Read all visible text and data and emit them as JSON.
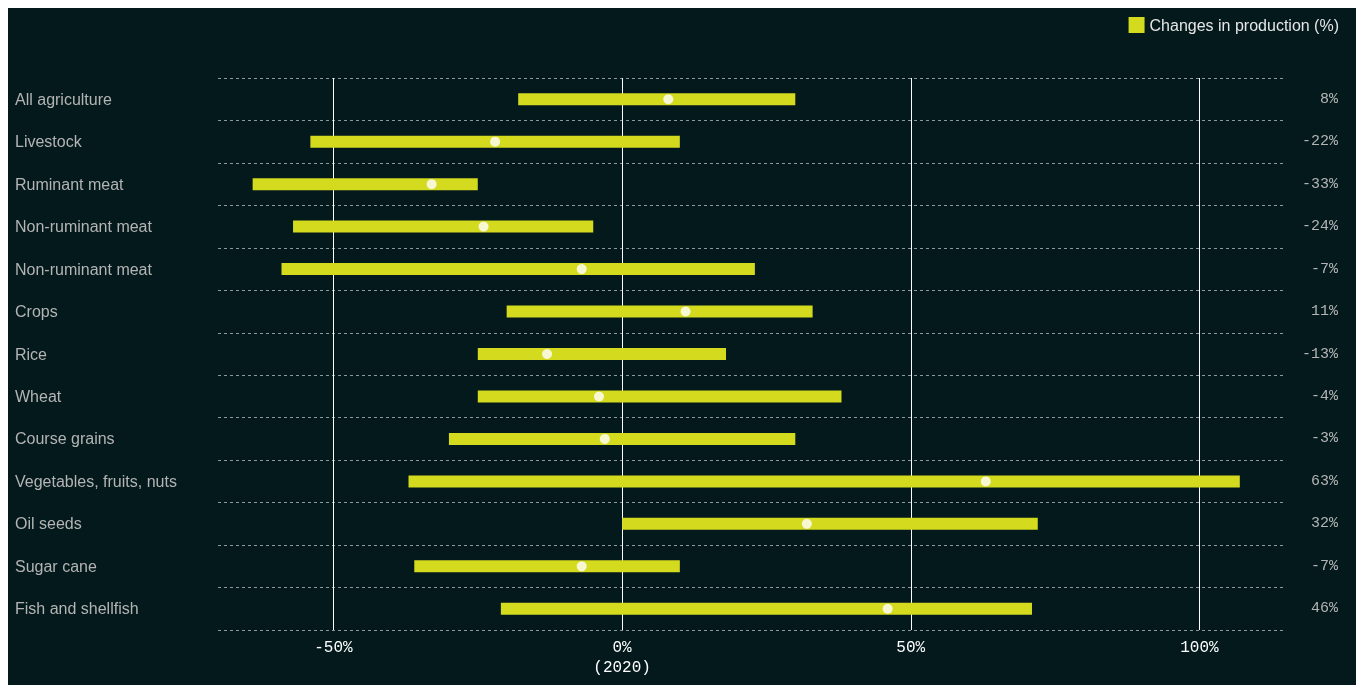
{
  "chart_data": {
    "type": "bar",
    "orientation": "horizontal",
    "categories": [
      "All agriculture",
      "Livestock",
      "Ruminant meat",
      "Non-ruminant meat",
      "Non-ruminant meat",
      "Crops",
      "Rice",
      "Wheat",
      "Course grains",
      "Vegetables, fruits, nuts",
      "Oil seeds",
      "Sugar cane",
      "Fish and shellfish"
    ],
    "series": [
      {
        "name": "Changes in production (%)",
        "color": "#d4da1e",
        "base": [
          -18,
          -54,
          -64,
          -57,
          -59,
          -20,
          -25,
          -25,
          -30,
          -37,
          0,
          -36,
          -21
        ],
        "values": [
          48,
          64,
          39,
          52,
          82,
          53,
          43,
          63,
          60,
          144,
          72,
          46,
          92
        ]
      },
      {
        "type": "scatter",
        "color": "#ffffff",
        "marker": "circle",
        "values": [
          8,
          -22,
          -33,
          -24,
          -7,
          11,
          -13,
          -4,
          -3,
          63,
          32,
          -7,
          46
        ],
        "value_labels": [
          "8%",
          "-22%",
          "-33%",
          "-24%",
          "-7%",
          "11%",
          "-13%",
          "-4%",
          "-3%",
          "63%",
          "32%",
          "-7%",
          "46%"
        ]
      }
    ],
    "xlim": [
      -70,
      115
    ],
    "xticks": [
      {
        "value": -50,
        "label": "-50%"
      },
      {
        "value": 0,
        "label": "0%\n(2020)"
      },
      {
        "value": 50,
        "label": "50%"
      },
      {
        "value": 100,
        "label": "100%"
      }
    ],
    "grid": true,
    "legend": "top right"
  }
}
